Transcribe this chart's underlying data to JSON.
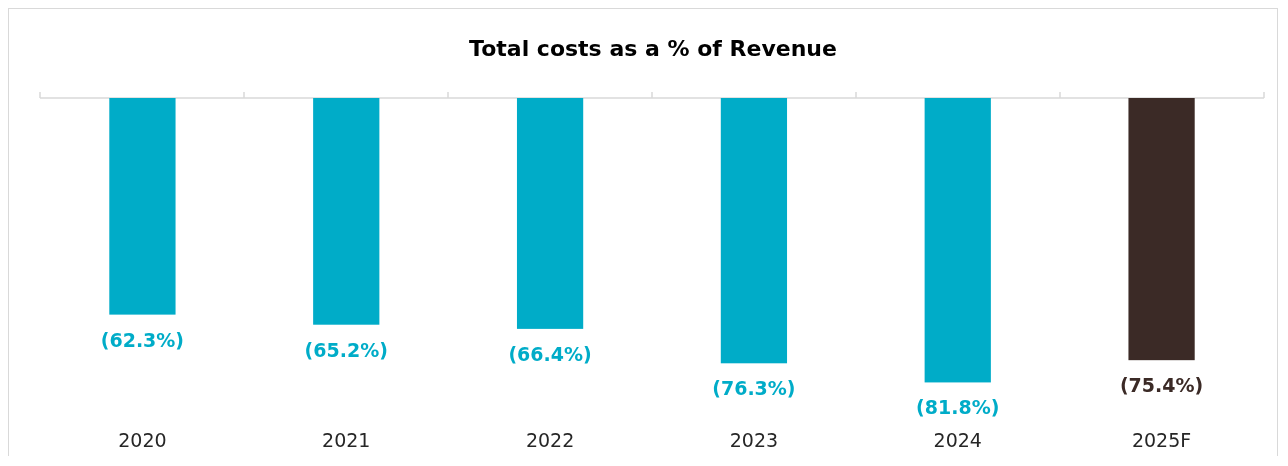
{
  "chart_data": {
    "type": "bar",
    "title": "Total costs as a % of Revenue",
    "categories": [
      "2020",
      "2021",
      "2022",
      "2023",
      "2024",
      "2025F"
    ],
    "values": [
      -62.3,
      -65.2,
      -66.4,
      -76.3,
      -81.8,
      -75.4
    ],
    "colors": [
      "#00acc8",
      "#00acc8",
      "#00acc8",
      "#00acc8",
      "#00acc8",
      "#3b2a26"
    ],
    "value_labels": [
      "(62.3%)",
      "(65.2%)",
      "(66.4%)",
      "(76.3%)",
      "(81.8%)",
      "(75.4%)"
    ],
    "tick_labels": "x"
  }
}
